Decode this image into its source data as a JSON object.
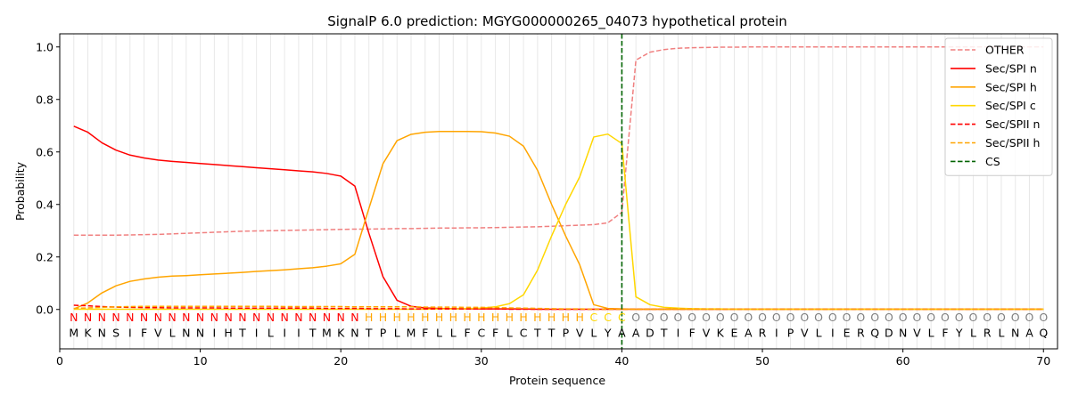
{
  "chart_data": {
    "type": "line",
    "title": "SignalP 6.0 prediction: MGYG000000265_04073 hypothetical protein",
    "xlabel": "Protein sequence",
    "ylabel": "Probability",
    "xlim": [
      0,
      71
    ],
    "ylim": [
      -0.15,
      1.05
    ],
    "x_ticks": [
      0,
      10,
      20,
      30,
      40,
      50,
      60,
      70
    ],
    "y_ticks": [
      0.0,
      0.2,
      0.4,
      0.6,
      0.8,
      1.0
    ],
    "y_tick_labels": [
      "0.0",
      "0.2",
      "0.4",
      "0.6",
      "0.8",
      "1.0"
    ],
    "grid": "vertical lines at each residue",
    "legend_position": "top-right",
    "sequence": [
      "M",
      "K",
      "N",
      "S",
      "I",
      "F",
      "V",
      "L",
      "N",
      "N",
      "I",
      "H",
      "T",
      "I",
      "L",
      "I",
      "I",
      "T",
      "M",
      "K",
      "N",
      "T",
      "P",
      "L",
      "M",
      "F",
      "L",
      "L",
      "F",
      "C",
      "F",
      "L",
      "C",
      "T",
      "T",
      "P",
      "V",
      "L",
      "Y",
      "A",
      "A",
      "D",
      "T",
      "I",
      "F",
      "V",
      "K",
      "E",
      "A",
      "R",
      "I",
      "P",
      "V",
      "L",
      "I",
      "E",
      "R",
      "Q",
      "D",
      "N",
      "V",
      "L",
      "F",
      "Y",
      "L",
      "R",
      "L",
      "N",
      "A",
      "Q"
    ],
    "region_labels": [
      "N",
      "N",
      "N",
      "N",
      "N",
      "N",
      "N",
      "N",
      "N",
      "N",
      "N",
      "N",
      "N",
      "N",
      "N",
      "N",
      "N",
      "N",
      "N",
      "N",
      "N",
      "H",
      "H",
      "H",
      "H",
      "H",
      "H",
      "H",
      "H",
      "H",
      "H",
      "H",
      "H",
      "H",
      "H",
      "H",
      "H",
      "C",
      "C",
      "C",
      "O",
      "O",
      "O",
      "O",
      "O",
      "O",
      "O",
      "O",
      "O",
      "O",
      "O",
      "O",
      "O",
      "O",
      "O",
      "O",
      "O",
      "O",
      "O",
      "O",
      "O",
      "O",
      "O",
      "O",
      "O",
      "O",
      "O",
      "O",
      "O",
      "O"
    ],
    "region_colors": {
      "N": "#ff0000",
      "H": "#ffa500",
      "C": "#ffd700",
      "O": "#808080"
    },
    "series": [
      {
        "name": "OTHER",
        "color": "#f08080",
        "dash": true,
        "values": [
          0.283,
          0.283,
          0.283,
          0.283,
          0.284,
          0.285,
          0.286,
          0.288,
          0.29,
          0.292,
          0.294,
          0.296,
          0.298,
          0.299,
          0.3,
          0.301,
          0.302,
          0.303,
          0.304,
          0.305,
          0.306,
          0.306,
          0.307,
          0.308,
          0.308,
          0.309,
          0.31,
          0.31,
          0.311,
          0.311,
          0.312,
          0.313,
          0.314,
          0.315,
          0.317,
          0.319,
          0.321,
          0.323,
          0.33,
          0.37,
          0.95,
          0.98,
          0.99,
          0.995,
          0.997,
          0.998,
          0.999,
          0.999,
          1.0,
          1.0,
          1.0,
          1.0,
          1.0,
          1.0,
          1.0,
          1.0,
          1.0,
          1.0,
          1.0,
          1.0,
          1.0,
          1.0,
          1.0,
          1.0,
          1.0,
          1.0,
          1.0,
          1.0,
          1.0,
          1.0
        ]
      },
      {
        "name": "Sec/SPI n",
        "color": "#ff0000",
        "dash": false,
        "values": [
          0.698,
          0.675,
          0.635,
          0.607,
          0.588,
          0.577,
          0.569,
          0.564,
          0.56,
          0.556,
          0.552,
          0.548,
          0.544,
          0.54,
          0.536,
          0.532,
          0.528,
          0.524,
          0.518,
          0.508,
          0.47,
          0.29,
          0.125,
          0.035,
          0.012,
          0.006,
          0.004,
          0.003,
          0.002,
          0.002,
          0.002,
          0.002,
          0.002,
          0.001,
          0.001,
          0.001,
          0.001,
          0.001,
          0.001,
          0.001,
          0.001,
          0.001,
          0.001,
          0.001,
          0.001,
          0.001,
          0.001,
          0.001,
          0.001,
          0.001,
          0.001,
          0.001,
          0.001,
          0.001,
          0.001,
          0.001,
          0.001,
          0.001,
          0.001,
          0.001,
          0.001,
          0.001,
          0.001,
          0.001,
          0.001,
          0.001,
          0.001,
          0.001,
          0.001,
          0.001
        ]
      },
      {
        "name": "Sec/SPI h",
        "color": "#ffa500",
        "dash": false,
        "values": [
          0.002,
          0.025,
          0.063,
          0.09,
          0.107,
          0.116,
          0.123,
          0.127,
          0.129,
          0.132,
          0.135,
          0.138,
          0.141,
          0.145,
          0.148,
          0.151,
          0.155,
          0.159,
          0.165,
          0.174,
          0.21,
          0.385,
          0.555,
          0.643,
          0.667,
          0.675,
          0.678,
          0.678,
          0.678,
          0.677,
          0.672,
          0.66,
          0.622,
          0.53,
          0.4,
          0.28,
          0.17,
          0.018,
          0.004,
          0.002,
          0.001,
          0.001,
          0.001,
          0.001,
          0.001,
          0.001,
          0.001,
          0.001,
          0.001,
          0.001,
          0.001,
          0.001,
          0.001,
          0.001,
          0.001,
          0.001,
          0.001,
          0.001,
          0.001,
          0.001,
          0.001,
          0.001,
          0.001,
          0.001,
          0.001,
          0.001,
          0.001,
          0.001,
          0.001,
          0.001
        ]
      },
      {
        "name": "Sec/SPI c",
        "color": "#ffd700",
        "dash": false,
        "values": [
          0.001,
          0.001,
          0.001,
          0.001,
          0.001,
          0.001,
          0.001,
          0.001,
          0.001,
          0.001,
          0.001,
          0.001,
          0.001,
          0.001,
          0.001,
          0.001,
          0.001,
          0.001,
          0.001,
          0.001,
          0.001,
          0.001,
          0.001,
          0.001,
          0.001,
          0.001,
          0.002,
          0.002,
          0.003,
          0.005,
          0.01,
          0.022,
          0.056,
          0.15,
          0.28,
          0.4,
          0.505,
          0.657,
          0.668,
          0.632,
          0.048,
          0.018,
          0.008,
          0.005,
          0.003,
          0.002,
          0.002,
          0.001,
          0.001,
          0.001,
          0.001,
          0.001,
          0.001,
          0.001,
          0.001,
          0.001,
          0.001,
          0.001,
          0.001,
          0.001,
          0.001,
          0.001,
          0.001,
          0.001,
          0.001,
          0.001,
          0.001,
          0.001,
          0.001,
          0.001
        ]
      },
      {
        "name": "Sec/SPII n",
        "color": "#ff0000",
        "dash": true,
        "values": [
          0.016,
          0.014,
          0.011,
          0.009,
          0.008,
          0.007,
          0.007,
          0.006,
          0.006,
          0.006,
          0.006,
          0.005,
          0.005,
          0.005,
          0.005,
          0.005,
          0.005,
          0.005,
          0.004,
          0.004,
          0.004,
          0.003,
          0.003,
          0.003,
          0.002,
          0.002,
          0.002,
          0.002,
          0.002,
          0.002,
          0.002,
          0.001,
          0.001,
          0.001,
          0.001,
          0.001,
          0.001,
          0.001,
          0.001,
          0.001,
          0.001,
          0.001,
          0.001,
          0.001,
          0.001,
          0.001,
          0.001,
          0.001,
          0.001,
          0.001,
          0.001,
          0.001,
          0.001,
          0.001,
          0.001,
          0.001,
          0.001,
          0.001,
          0.001,
          0.001,
          0.001,
          0.001,
          0.001,
          0.001,
          0.001,
          0.001,
          0.001,
          0.001,
          0.001,
          0.001
        ]
      },
      {
        "name": "Sec/SPII h",
        "color": "#ffa500",
        "dash": true,
        "values": [
          0.004,
          0.006,
          0.008,
          0.01,
          0.011,
          0.012,
          0.012,
          0.012,
          0.012,
          0.012,
          0.012,
          0.012,
          0.012,
          0.012,
          0.012,
          0.011,
          0.011,
          0.011,
          0.011,
          0.011,
          0.01,
          0.01,
          0.01,
          0.01,
          0.01,
          0.009,
          0.009,
          0.009,
          0.008,
          0.008,
          0.007,
          0.006,
          0.005,
          0.004,
          0.003,
          0.002,
          0.002,
          0.001,
          0.001,
          0.001,
          0.001,
          0.001,
          0.001,
          0.001,
          0.001,
          0.001,
          0.001,
          0.001,
          0.001,
          0.001,
          0.001,
          0.001,
          0.001,
          0.001,
          0.001,
          0.001,
          0.001,
          0.001,
          0.001,
          0.001,
          0.001,
          0.001,
          0.001,
          0.001,
          0.001,
          0.001,
          0.001,
          0.001,
          0.001,
          0.001
        ]
      }
    ],
    "cs": {
      "name": "CS",
      "x": 40,
      "color": "#006400"
    }
  }
}
